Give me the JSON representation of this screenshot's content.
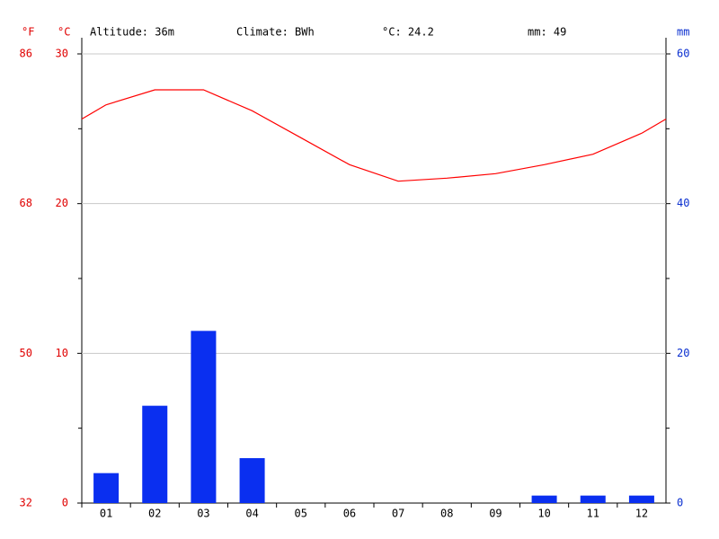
{
  "chart_data": {
    "type": "combo",
    "annotations": [
      "Altitude: 36m",
      "Climate: BWh",
      "°C: 24.2",
      "mm: 49"
    ],
    "ylabel_f": "°F",
    "ylabel": "°C",
    "y2label": "mm",
    "categories": [
      "01",
      "02",
      "03",
      "04",
      "05",
      "06",
      "07",
      "08",
      "09",
      "10",
      "11",
      "12"
    ],
    "series": [
      {
        "name": "°C",
        "type": "line",
        "color": "#ff0000",
        "values": [
          26.6,
          27.6,
          27.6,
          26.2,
          24.4,
          22.6,
          21.5,
          21.7,
          22.0,
          22.6,
          23.3,
          24.7
        ]
      },
      {
        "name": "mm",
        "type": "bar",
        "axis": "y2",
        "color": "#0a2ff0",
        "values": [
          4,
          13,
          23,
          6,
          0,
          0,
          0,
          0,
          0,
          1,
          1,
          1
        ]
      }
    ],
    "ylim": [
      0,
      30
    ],
    "yticks": [
      0,
      10,
      20,
      30
    ],
    "fticks": [
      {
        "value": 0,
        "label": "32"
      },
      {
        "value": 10,
        "label": "50"
      },
      {
        "value": 20,
        "label": "68"
      },
      {
        "value": 30,
        "label": "86"
      }
    ],
    "y2lim": [
      0,
      60
    ],
    "y2ticks": [
      0,
      20,
      40,
      60
    ],
    "grid": true
  }
}
